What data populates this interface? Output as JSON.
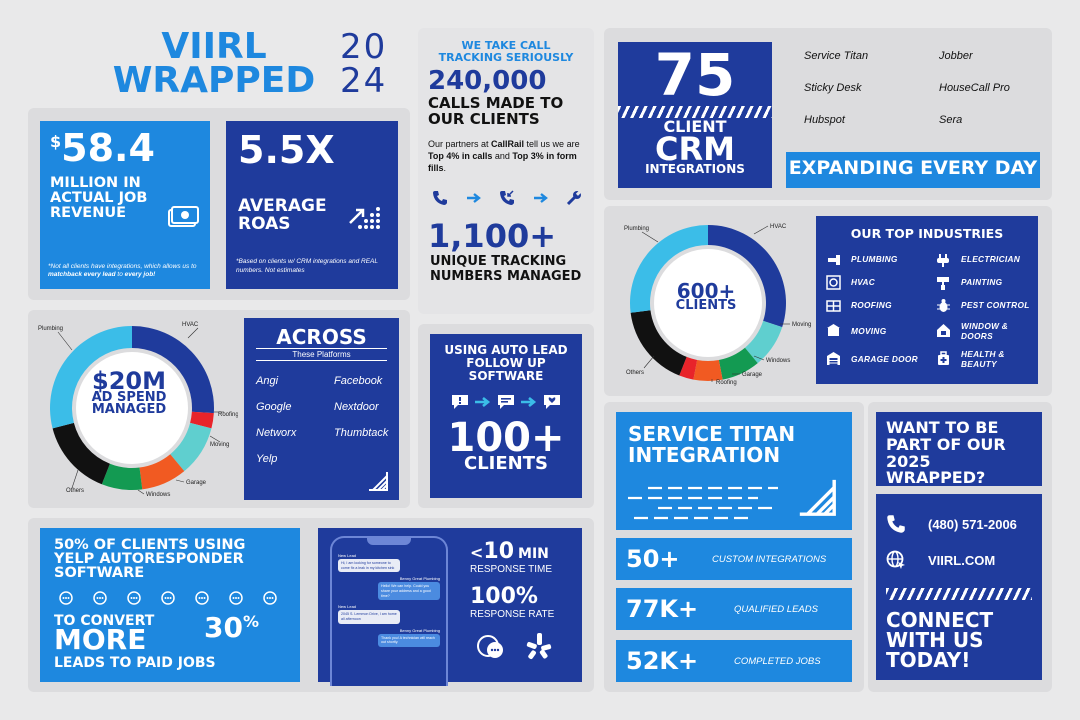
{
  "header": {
    "title_line1": "VIIRL",
    "title_line2": "WRAPPED",
    "year_top": "20",
    "year_bottom": "24"
  },
  "revenue": {
    "dollar": "$",
    "value": "58.4",
    "label": "MILLION IN ACTUAL JOB REVENUE",
    "note_prefix": "*Not all clients have integrations, which allows us to ",
    "note_bold": "matchback every lead",
    "note_mid": " to ",
    "note_bold2": "every job!"
  },
  "roas": {
    "value": "5.5x",
    "label": "AVERAGE ROAS",
    "note": "*Based on clients w/ CRM integrations and REAL numbers. Not estimates"
  },
  "calls": {
    "kicker": "WE TAKE CALL TRACKING SERIOUSLY",
    "value": "240,000",
    "label": "CALLS MADE TO OUR CLIENTS",
    "partner_pre": "Our partners at ",
    "partner_bold": "CallRail",
    "partner_mid": " tell us we are ",
    "partner_b2": "Top 4% in calls",
    "partner_and": " and ",
    "partner_b3": "Top 3% in form fills",
    "partner_end": ".",
    "numbers_value": "1,100+",
    "numbers_label": "UNIQUE TRACKING NUMBERS MANAGED"
  },
  "crm": {
    "value": "75",
    "label_line1": "CLIENT",
    "label_line2": "CRM",
    "label_line3": "INTEGRATIONS",
    "platforms": [
      "Service Titan",
      "Jobber",
      "Sticky Desk",
      "HouseCall Pro",
      "Hubspot",
      "Sera"
    ],
    "banner": "EXPANDING EVERY DAY"
  },
  "clients_chart": {
    "center_value": "600+",
    "center_label": "CLIENTS",
    "labels": [
      "Plumbing",
      "HVAC",
      "Moving",
      "Windows",
      "Garage",
      "Roofing",
      "Others"
    ]
  },
  "industries": {
    "title": "OUR TOP INDUSTRIES",
    "items": [
      {
        "label": "PLUMBING",
        "icon": "plumbing-icon"
      },
      {
        "label": "ELECTRICIAN",
        "icon": "electrician-icon"
      },
      {
        "label": "HVAC",
        "icon": "hvac-icon"
      },
      {
        "label": "PAINTING",
        "icon": "painting-icon"
      },
      {
        "label": "ROOFING",
        "icon": "roofing-icon"
      },
      {
        "label": "PEST CONTROL",
        "icon": "pest-control-icon"
      },
      {
        "label": "MOVING",
        "icon": "moving-icon"
      },
      {
        "label": "WINDOW & DOORS",
        "icon": "window-icon"
      },
      {
        "label": "GARAGE DOOR",
        "icon": "garage-icon"
      },
      {
        "label": "HEALTH & BEAUTY",
        "icon": "health-icon"
      }
    ]
  },
  "adspend": {
    "center_value": "$20M",
    "center_label_1": "AD SPEND",
    "center_label_2": "MANAGED",
    "labels": [
      "Plumbing",
      "HVAC",
      "Roofing",
      "Moving",
      "Garage",
      "Windows",
      "Others"
    ]
  },
  "across": {
    "title": "ACROSS",
    "subtitle": "These Platforms",
    "platforms": [
      "Angi",
      "Facebook",
      "Google",
      "Nextdoor",
      "Networx",
      "Thumbtack",
      "Yelp"
    ]
  },
  "autolead": {
    "title": "USING AUTO LEAD FOLLOW UP SOFTWARE",
    "value": "100+",
    "label": "CLIENTS"
  },
  "servicetitan": {
    "title": "SERVICE TITAN INTEGRATION",
    "stats": [
      {
        "value": "50+",
        "label": "CUSTOM INTEGRATIONS"
      },
      {
        "value": "77K+",
        "label": "QUALIFIED LEADS"
      },
      {
        "value": "52K+",
        "label": "COMPLETED JOBS"
      }
    ]
  },
  "cta": {
    "question": "WANT TO BE PART OF OUR 2025 WRAPPED?",
    "phone": "(480) 571-2006",
    "site": "VIIRL.COM",
    "connect": "CONNECT WITH US TODAY!"
  },
  "yelp": {
    "headline": "50% OF CLIENTS USING YELP AUTORESPONDER SOFTWARE",
    "line2a": "TO CONVERT",
    "line2b": "MORE",
    "pct": "30",
    "pct_sign": "%",
    "line3": "LEADS TO PAID JOBS"
  },
  "response": {
    "time_prefix": "<",
    "time_value": "10",
    "time_unit": "MIN",
    "time_label": "RESPONSE TIME",
    "rate_value": "100%",
    "rate_label": "RESPONSE RATE"
  },
  "phone_chat": {
    "msgs": [
      {
        "who": "New Lead",
        "text": "Hi, I am looking for someone to come fix a leak in my kitchen sink"
      },
      {
        "who": "Benny Great Plumbing",
        "text": "Hello! We can help. Could you share your address and a good time?"
      },
      {
        "who": "New Lead",
        "text": "2045 S. Lemmon Drive, I am home all afternoon"
      },
      {
        "who": "Benny Great Plumbing",
        "text": "Thank you! A technician will reach out shortly."
      }
    ]
  },
  "colors": {
    "navy": "#1f3b9c",
    "sky": "#1e88df",
    "cyan": "#3bbde8",
    "orange": "#f15a22",
    "green": "#139a52",
    "red": "#e8242a",
    "teal": "#5fcfcf",
    "black": "#111111"
  }
}
